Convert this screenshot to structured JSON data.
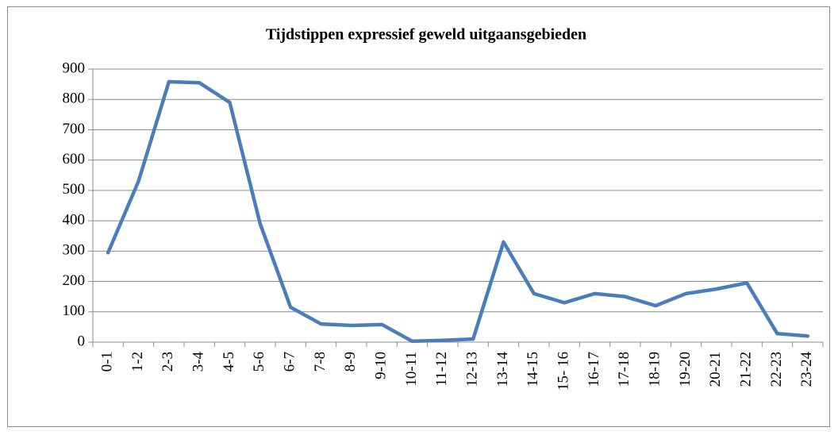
{
  "chart_data": {
    "type": "line",
    "title": "Tijdstippen expressief geweld uitgaansgebieden",
    "categories": [
      "0-1",
      "1-2",
      "2-3",
      "3-4",
      "4-5",
      "5-6",
      "6-7",
      "7-8",
      "8-9",
      "9-10",
      "10-11",
      "11-12",
      "12-13",
      "13-14",
      "14-15",
      "15- 16",
      "16-17",
      "17-18",
      "18-19",
      "19-20",
      "20-21",
      "21-22",
      "22-23",
      "23-24"
    ],
    "series": [
      {
        "color": "#4a7ebb",
        "values": [
          295,
          530,
          858,
          855,
          790,
          390,
          115,
          60,
          55,
          58,
          3,
          6,
          10,
          330,
          160,
          130,
          160,
          150,
          120,
          160,
          175,
          195,
          28,
          20
        ]
      }
    ],
    "ylim": [
      0,
      900
    ],
    "yticks": [
      0,
      100,
      200,
      300,
      400,
      500,
      600,
      700,
      800,
      900
    ],
    "grid": true
  }
}
